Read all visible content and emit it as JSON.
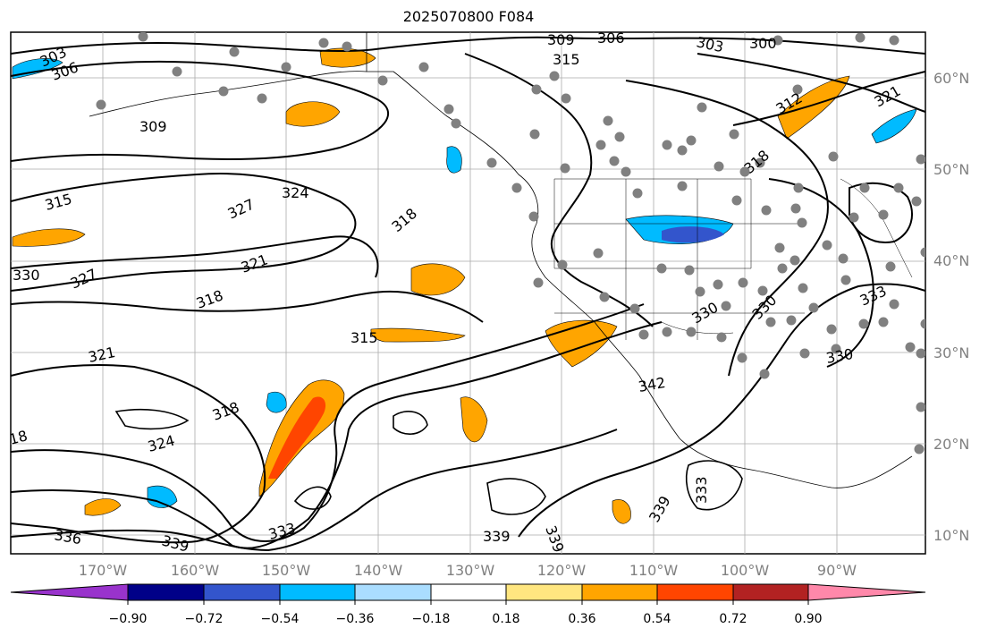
{
  "title": "2025070800 F084",
  "lat_labels": [
    "60°N",
    "50°N",
    "40°N",
    "30°N",
    "20°N",
    "10°N"
  ],
  "lon_labels": [
    "170°W",
    "160°W",
    "150°W",
    "140°W",
    "130°W",
    "120°W",
    "110°W",
    "100°W",
    "90°W"
  ],
  "colorbar": {
    "ticks": [
      "−0.90",
      "−0.72",
      "−0.54",
      "−0.36",
      "−0.18",
      "0.18",
      "0.36",
      "0.54",
      "0.72",
      "0.90"
    ],
    "colors": [
      "#9933cc",
      "#000088",
      "#3355cc",
      "#00bbff",
      "#aaddff",
      "#ffffff",
      "#ffe680",
      "#ffa500",
      "#ff4500",
      "#b22222",
      "#ff88aa"
    ]
  },
  "contour_labels": [
    "303",
    "306",
    "309",
    "306",
    "303",
    "300",
    "315",
    "309",
    "315",
    "324",
    "327",
    "318",
    "312",
    "321",
    "318",
    "330",
    "327",
    "321",
    "318",
    "315",
    "321",
    "318",
    "324",
    "336",
    "339",
    "333",
    "339",
    "339",
    "342",
    "333",
    "339",
    "330",
    "333",
    "330",
    "18"
  ],
  "colors": {
    "positive_fill": "#ffa500",
    "strong_positive_fill": "#ff4500",
    "negative_fill": "#00bbff",
    "contour": "#000000",
    "station": "#808080",
    "grid": "#808080"
  }
}
